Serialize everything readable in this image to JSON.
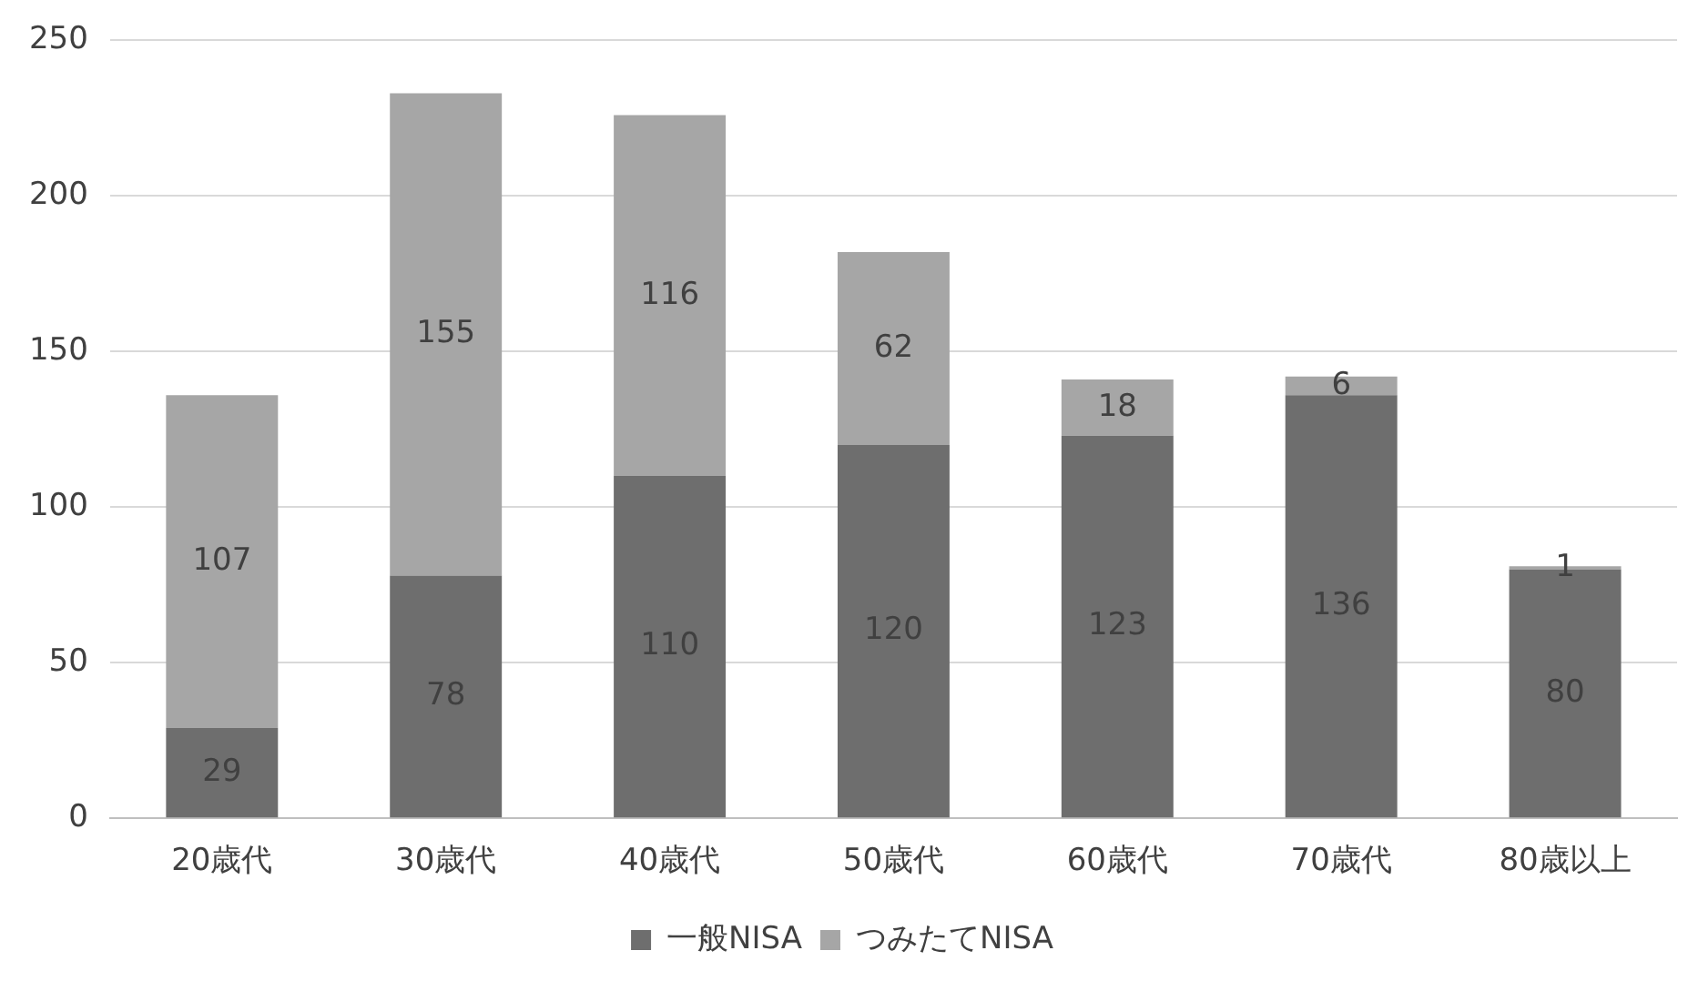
{
  "chart_data": {
    "type": "bar",
    "stacked": true,
    "categories": [
      "20歳代",
      "30歳代",
      "40歳代",
      "50歳代",
      "60歳代",
      "70歳代",
      "80歳以上"
    ],
    "series": [
      {
        "name": "一般NISA",
        "color": "#6e6e6e",
        "values": [
          29,
          78,
          110,
          120,
          123,
          136,
          80
        ]
      },
      {
        "name": "つみたてNISA",
        "color": "#a6a6a6",
        "values": [
          107,
          155,
          116,
          62,
          18,
          6,
          1
        ]
      }
    ],
    "ylim": [
      0,
      250
    ],
    "yticks": [
      0,
      50,
      100,
      150,
      200,
      250
    ],
    "grid": "y",
    "legend": "bottom",
    "data_labels": true
  }
}
